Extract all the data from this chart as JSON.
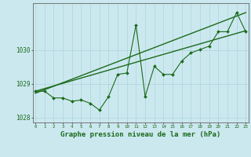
{
  "x": [
    0,
    1,
    2,
    3,
    4,
    5,
    6,
    7,
    8,
    9,
    10,
    11,
    12,
    13,
    14,
    15,
    16,
    17,
    18,
    19,
    20,
    21,
    22,
    23
  ],
  "pressure": [
    1028.78,
    1028.78,
    1028.58,
    1028.58,
    1028.48,
    1028.52,
    1028.42,
    1028.22,
    1028.62,
    1029.28,
    1029.32,
    1030.75,
    1028.62,
    1029.52,
    1029.28,
    1029.28,
    1029.68,
    1029.92,
    1030.02,
    1030.12,
    1030.55,
    1030.55,
    1031.12,
    1030.55
  ],
  "trend1_x": [
    0,
    23
  ],
  "trend1_y": [
    1028.78,
    1030.58
  ],
  "trend2_x": [
    0,
    23
  ],
  "trend2_y": [
    1028.72,
    1031.12
  ],
  "line_color": "#1a6b1a",
  "bg_color": "#cce8ef",
  "grid_color": "#aad4dc",
  "ylabel_ticks": [
    1028,
    1029,
    1030
  ],
  "ylabel_labels": [
    "1028",
    "1029",
    "1030"
  ],
  "xtick_labels": [
    "0",
    "1",
    "2",
    "3",
    "4",
    "5",
    "6",
    "7",
    "8",
    "9",
    "10",
    "11",
    "12",
    "13",
    "14",
    "15",
    "16",
    "17",
    "18",
    "19",
    "20",
    "21",
    "22",
    "23"
  ],
  "xlabel": "Graphe pression niveau de la mer (hPa)",
  "ylim_min": 1027.85,
  "ylim_max": 1031.4,
  "xlim_min": -0.3,
  "xlim_max": 23.3
}
